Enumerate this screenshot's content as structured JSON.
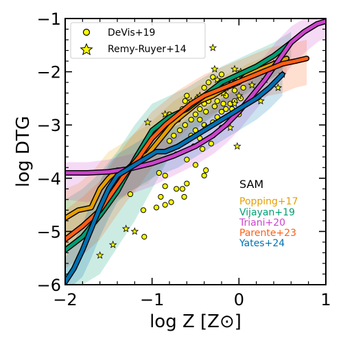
{
  "chart_data": {
    "type": "line",
    "xlabel": "log Z [Z⊙]",
    "ylabel": "log DTG",
    "xlim": [
      -2,
      1
    ],
    "ylim": [
      -6,
      -1
    ],
    "x_ticks": [
      -2,
      -1,
      0,
      1
    ],
    "y_ticks": [
      -6,
      -5,
      -4,
      -3,
      -2,
      -1
    ],
    "x_tick_labels": [
      "−2",
      "−1",
      "0",
      "1"
    ],
    "y_tick_labels": [
      "−6",
      "−5",
      "−4",
      "−3",
      "−2",
      "−1"
    ],
    "grid": false,
    "legend_position": "top-left",
    "observations": [
      {
        "name": "DeVis+19",
        "marker": "circle",
        "color": "#ffff00",
        "points": [
          [
            -1.09,
            -5.1
          ],
          [
            -1.1,
            -4.6
          ],
          [
            -1.25,
            -4.3
          ],
          [
            -0.9,
            -4.35
          ],
          [
            -0.95,
            -4.55
          ],
          [
            -0.85,
            -4.5
          ],
          [
            -0.78,
            -4.45
          ],
          [
            -0.65,
            -4.2
          ],
          [
            -0.6,
            -4.1
          ],
          [
            -0.63,
            -4.35
          ],
          [
            -0.72,
            -4.2
          ],
          [
            -0.85,
            -4.15
          ],
          [
            -0.92,
            -3.9
          ],
          [
            -0.85,
            -3.95
          ],
          [
            -0.4,
            -3.95
          ],
          [
            -0.38,
            -3.85
          ],
          [
            -0.5,
            -3.75
          ],
          [
            -0.6,
            -3.65
          ],
          [
            -0.72,
            -3.55
          ],
          [
            -0.8,
            -3.3
          ],
          [
            -0.75,
            -3.2
          ],
          [
            -0.68,
            -3.1
          ],
          [
            -0.62,
            -3.0
          ],
          [
            -0.55,
            -2.9
          ],
          [
            -0.5,
            -2.8
          ],
          [
            -0.45,
            -2.7
          ],
          [
            -0.4,
            -2.6
          ],
          [
            -0.35,
            -2.55
          ],
          [
            -0.3,
            -2.45
          ],
          [
            -0.25,
            -2.4
          ],
          [
            -0.2,
            -2.35
          ],
          [
            -0.15,
            -2.3
          ],
          [
            -0.1,
            -2.25
          ],
          [
            -0.05,
            -2.2
          ],
          [
            0.0,
            -2.15
          ],
          [
            -0.45,
            -2.9
          ],
          [
            -0.4,
            -3.0
          ],
          [
            -0.35,
            -3.05
          ],
          [
            -0.3,
            -2.95
          ],
          [
            -0.25,
            -2.85
          ],
          [
            -0.2,
            -2.75
          ],
          [
            -0.15,
            -2.7
          ],
          [
            -0.1,
            -2.6
          ],
          [
            -0.05,
            -2.55
          ],
          [
            -0.5,
            -3.1
          ],
          [
            -0.55,
            -3.2
          ],
          [
            -0.6,
            -3.3
          ],
          [
            -0.45,
            -3.25
          ],
          [
            -0.3,
            -3.2
          ],
          [
            -0.2,
            -3.05
          ],
          [
            -0.1,
            -2.9
          ],
          [
            0.0,
            -2.8
          ],
          [
            -0.65,
            -2.7
          ],
          [
            -0.7,
            -2.9
          ],
          [
            -0.85,
            -3.1
          ],
          [
            -0.9,
            -3.25
          ],
          [
            -0.35,
            -2.2
          ],
          [
            -0.3,
            -2.1
          ],
          [
            -0.2,
            -2.05
          ],
          [
            -0.4,
            -2.3
          ],
          [
            -0.25,
            -2.55
          ],
          [
            -0.15,
            -2.45
          ],
          [
            -0.05,
            -2.35
          ],
          [
            0.05,
            -2.3
          ],
          [
            -0.55,
            -2.6
          ],
          [
            -0.6,
            -2.45
          ],
          [
            -0.48,
            -2.5
          ],
          [
            -0.38,
            -2.75
          ],
          [
            -0.28,
            -2.65
          ],
          [
            -0.18,
            -2.6
          ],
          [
            -0.08,
            -2.7
          ],
          [
            0.02,
            -2.5
          ],
          [
            -0.8,
            -2.8
          ],
          [
            -0.7,
            -3.4
          ],
          [
            -0.52,
            -3.4
          ],
          [
            -0.42,
            -3.45
          ],
          [
            -0.32,
            -3.35
          ],
          [
            -0.62,
            -2.55
          ],
          [
            -0.12,
            -2.15
          ],
          [
            -0.22,
            -2.2
          ]
        ]
      },
      {
        "name": "Remy-Ruyer+14",
        "marker": "star",
        "color": "#ffff00",
        "points": [
          [
            -1.6,
            -5.45
          ],
          [
            -1.45,
            -5.25
          ],
          [
            -1.3,
            -4.95
          ],
          [
            -1.2,
            -5.0
          ],
          [
            -1.05,
            -2.95
          ],
          [
            -0.85,
            -2.8
          ],
          [
            -0.75,
            -2.85
          ],
          [
            -0.6,
            -2.7
          ],
          [
            -0.55,
            -2.55
          ],
          [
            -0.45,
            -2.45
          ],
          [
            -0.3,
            -1.55
          ],
          [
            -0.28,
            -1.95
          ],
          [
            -0.25,
            -2.15
          ],
          [
            -0.2,
            -2.2
          ],
          [
            -0.15,
            -2.3
          ],
          [
            -0.1,
            -3.05
          ],
          [
            -0.05,
            -2.6
          ],
          [
            0.0,
            -2.45
          ],
          [
            0.02,
            -2.0
          ],
          [
            0.05,
            -2.05
          ],
          [
            0.1,
            -2.1
          ],
          [
            0.15,
            -2.25
          ],
          [
            0.25,
            -2.55
          ],
          [
            0.3,
            -2.15
          ],
          [
            0.4,
            -1.85
          ],
          [
            0.45,
            -2.3
          ],
          [
            0.5,
            -2.05
          ],
          [
            -0.02,
            -3.4
          ],
          [
            -0.38,
            -3.05
          ],
          [
            -0.05,
            -1.95
          ],
          [
            -0.18,
            -2.4
          ]
        ]
      }
    ],
    "series": [
      {
        "name": "Popping+17",
        "color": "#e69f00",
        "x": [
          -2.0,
          -1.85,
          -1.7,
          -1.6,
          -1.5,
          -1.4,
          -1.3,
          -1.2,
          -1.05,
          -0.95,
          -0.85,
          -0.75,
          -0.6,
          -0.45,
          -0.3,
          -0.15,
          0.0,
          0.1,
          0.25,
          0.4,
          0.55
        ],
        "y": [
          -4.75,
          -4.6,
          -4.55,
          -4.2,
          -4.0,
          -3.85,
          -3.85,
          -3.7,
          -3.55,
          -3.35,
          -3.15,
          -2.95,
          -2.75,
          -2.55,
          -2.45,
          -2.3,
          -2.2,
          -2.05,
          -1.95,
          -1.85,
          -1.75
        ],
        "band": {
          "upper": [
            -4.2,
            -4.1,
            -3.9,
            -3.7,
            -3.5,
            -3.4,
            -3.3,
            -3.15,
            -3.0,
            -2.85,
            -2.7,
            -2.55,
            -2.4,
            -2.25,
            -2.15,
            -2.05,
            -1.95,
            -1.85,
            -1.75,
            -1.65,
            -1.55
          ],
          "lower": [
            -5.3,
            -5.2,
            -5.1,
            -4.8,
            -4.6,
            -4.4,
            -4.35,
            -4.2,
            -4.1,
            -3.9,
            -3.7,
            -3.5,
            -3.25,
            -3.0,
            -2.85,
            -2.65,
            -2.5,
            -2.35,
            -2.2,
            -2.1,
            -2.0
          ]
        }
      },
      {
        "name": "Vijayan+19",
        "color": "#009e73",
        "x": [
          -2.0,
          -1.8,
          -1.6,
          -1.4,
          -1.2,
          -1.0,
          -0.8,
          -0.6,
          -0.4,
          -0.2,
          0.0,
          0.2,
          0.4,
          0.6
        ],
        "y": [
          -5.35,
          -5.1,
          -4.7,
          -4.25,
          -3.65,
          -3.1,
          -2.85,
          -2.7,
          -2.45,
          -2.2,
          -2.05,
          -1.9,
          -1.7,
          -1.45
        ],
        "band": {
          "upper": [
            -4.4,
            -4.2,
            -3.9,
            -3.5,
            -3.0,
            -2.6,
            -2.45,
            -2.3,
            -2.1,
            -1.9,
            -1.75,
            -1.6,
            -1.45,
            -1.25
          ],
          "lower": [
            -6.0,
            -6.0,
            -5.8,
            -5.3,
            -4.8,
            -4.2,
            -3.6,
            -3.25,
            -2.95,
            -2.7,
            -2.5,
            -2.3,
            -2.1,
            -1.8
          ]
        }
      },
      {
        "name": "Triani+20",
        "color": "#cc44cc",
        "x": [
          -2.0,
          -1.75,
          -1.5,
          -1.25,
          -1.0,
          -0.75,
          -0.5,
          -0.3,
          -0.15,
          0.0,
          0.15,
          0.3,
          0.45,
          0.6,
          0.75,
          0.9,
          1.0
        ],
        "y": [
          -3.9,
          -3.9,
          -3.88,
          -3.82,
          -3.72,
          -3.58,
          -3.4,
          -3.2,
          -3.0,
          -2.75,
          -2.45,
          -2.15,
          -1.8,
          -1.45,
          -1.25,
          -1.1,
          -1.05
        ],
        "band": {
          "upper": [
            -3.7,
            -3.7,
            -3.65,
            -3.55,
            -3.4,
            -3.2,
            -2.95,
            -2.7,
            -2.45,
            -2.2,
            -1.95,
            -1.7,
            -1.4,
            -1.15,
            -1.0,
            -1.0,
            -1.0
          ],
          "lower": [
            -4.4,
            -4.45,
            -4.4,
            -4.3,
            -4.15,
            -3.95,
            -3.75,
            -3.55,
            -3.35,
            -3.1,
            -2.8,
            -2.5,
            -2.2,
            -1.9,
            -1.65,
            -1.45,
            -1.35
          ]
        }
      },
      {
        "name": "Parente+23",
        "color": "#ff5e14",
        "x": [
          -2.0,
          -1.8,
          -1.6,
          -1.45,
          -1.3,
          -1.15,
          -1.0,
          -0.85,
          -0.7,
          -0.55,
          -0.4,
          -0.25,
          -0.1,
          0.05,
          0.2,
          0.35,
          0.5,
          0.65,
          0.78
        ],
        "y": [
          -5.15,
          -4.9,
          -4.6,
          -4.25,
          -3.9,
          -3.6,
          -3.25,
          -3.0,
          -2.8,
          -2.6,
          -2.45,
          -2.35,
          -2.25,
          -2.15,
          -2.05,
          -1.95,
          -1.85,
          -1.8,
          -1.75
        ],
        "band": {
          "upper": [
            -4.6,
            -4.35,
            -4.05,
            -3.7,
            -3.35,
            -3.05,
            -2.75,
            -2.55,
            -2.35,
            -2.2,
            -2.05,
            -1.95,
            -1.85,
            -1.75,
            -1.65,
            -1.55,
            -1.5,
            -1.45,
            -1.4
          ],
          "lower": [
            -5.7,
            -5.45,
            -5.15,
            -4.8,
            -4.45,
            -4.15,
            -3.8,
            -3.5,
            -3.25,
            -3.0,
            -2.85,
            -2.75,
            -2.65,
            -2.55,
            -2.5,
            -2.45,
            -2.4,
            -2.3,
            -2.25
          ]
        }
      },
      {
        "name": "Yates+24",
        "color": "#0072b2",
        "x": [
          -2.0,
          -1.9,
          -1.8,
          -1.7,
          -1.6,
          -1.5,
          -1.4,
          -1.3,
          -1.2,
          -1.1,
          -0.95,
          -0.85,
          -0.7,
          -0.55,
          -0.4,
          -0.25,
          -0.1,
          0.05,
          0.2,
          0.35,
          0.5
        ],
        "y": [
          -5.95,
          -5.7,
          -5.35,
          -4.95,
          -4.55,
          -4.2,
          -3.95,
          -3.85,
          -3.75,
          -3.65,
          -3.5,
          -3.5,
          -3.4,
          -3.25,
          -3.1,
          -2.95,
          -2.8,
          -2.65,
          -2.5,
          -2.3,
          -2.05
        ],
        "band": {
          "upper": [
            -5.5,
            -5.2,
            -4.85,
            -4.45,
            -4.05,
            -3.75,
            -3.55,
            -3.45,
            -3.35,
            -3.25,
            -3.15,
            -3.1,
            -3.0,
            -2.85,
            -2.7,
            -2.55,
            -2.4,
            -2.25,
            -2.1,
            -1.95,
            -1.75
          ],
          "lower": [
            -6.0,
            -6.0,
            -5.85,
            -5.5,
            -5.1,
            -4.75,
            -4.45,
            -4.3,
            -4.2,
            -4.1,
            -3.95,
            -3.9,
            -3.8,
            -3.65,
            -3.5,
            -3.35,
            -3.2,
            -3.05,
            -2.9,
            -2.7,
            -2.45
          ]
        }
      }
    ],
    "legend": {
      "entries": [
        {
          "label": "DeVis+19",
          "marker": "circle"
        },
        {
          "label": "Remy-Ruyer+14",
          "marker": "star"
        }
      ]
    },
    "sam_label": {
      "heading": "SAM",
      "names": [
        "Popping+17",
        "Vijayan+19",
        "Triani+20",
        "Parente+23",
        "Yates+24"
      ]
    }
  }
}
